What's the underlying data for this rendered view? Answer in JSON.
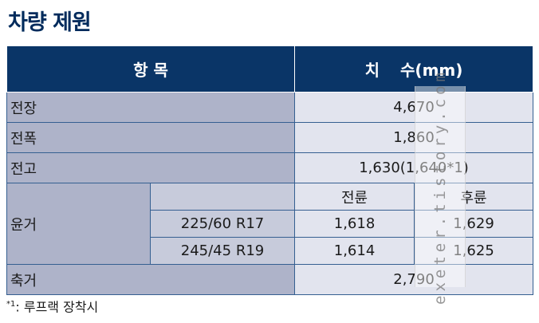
{
  "title": "차량 제원",
  "table": {
    "header": {
      "item": "항 목",
      "dimension_char1": "치",
      "dimension_char2": "수(mm)"
    },
    "rows": {
      "length": {
        "label": "전장",
        "value": "4,670"
      },
      "width": {
        "label": "전폭",
        "value": "1,860"
      },
      "height": {
        "label": "전고",
        "value": "1,630(1,640*1)"
      },
      "tread": {
        "label": "윤거",
        "front_header": "전륜",
        "rear_header": "후륜",
        "tires": [
          {
            "size": "225/60 R17",
            "front": "1,618",
            "rear": "1,629"
          },
          {
            "size": "245/45 R19",
            "front": "1,614",
            "rear": "1,625"
          }
        ]
      },
      "wheelbase": {
        "label": "축거",
        "value": "2,790"
      }
    }
  },
  "footnote": {
    "mark": "*1",
    "text": ": 루프랙 장착시"
  },
  "watermark": "exeter.tistory.com"
}
